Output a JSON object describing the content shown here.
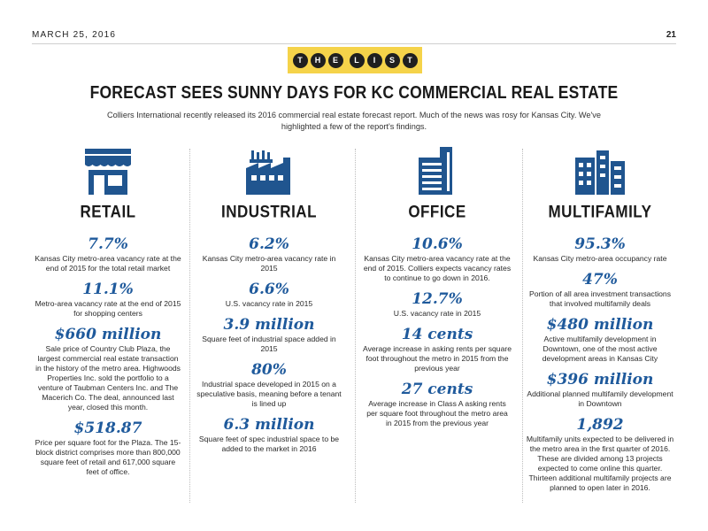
{
  "header": {
    "date": "MARCH 25, 2016",
    "page_number": "21"
  },
  "badge": {
    "word1": [
      "T",
      "H",
      "E"
    ],
    "word2": [
      "L",
      "I",
      "S",
      "T"
    ]
  },
  "headline": "FORECAST SEES SUNNY DAYS FOR KC COMMERCIAL REAL ESTATE",
  "intro": "Colliers International recently released its 2016 commercial real estate forecast report. Much of the news was rosy for Kansas City. We've highlighted a few of the report's findings.",
  "colors": {
    "accent_blue": "#1f5a9c",
    "badge_yellow": "#f5d34a",
    "icon_blue": "#20558f"
  },
  "columns": [
    {
      "icon": "storefront-icon",
      "title": "RETAIL",
      "stats": [
        {
          "value": "7.7%",
          "desc": "Kansas City metro-area vacancy rate at the end of 2015 for the total retail market"
        },
        {
          "value": "11.1%",
          "desc": "Metro-area vacancy rate at the end of 2015 for shopping centers"
        },
        {
          "value": "$660 million",
          "desc": "Sale price of Country Club Plaza, the largest commercial real estate transaction in the history of the metro area. Highwoods Properties Inc. sold the portfolio to a venture of Taubman Centers Inc. and The Macerich Co. The deal, announced last year, closed this month."
        },
        {
          "value": "$518.87",
          "desc": "Price per square foot for the Plaza. The 15-block district comprises more than 800,000 square feet of retail and 617,000 square feet of office."
        }
      ]
    },
    {
      "icon": "factory-icon",
      "title": "INDUSTRIAL",
      "stats": [
        {
          "value": "6.2%",
          "desc": "Kansas City metro-area vacancy rate in 2015"
        },
        {
          "value": "6.6%",
          "desc": "U.S. vacancy rate in 2015"
        },
        {
          "value": "3.9 million",
          "desc": "Square feet of industrial space added in 2015"
        },
        {
          "value": "80%",
          "desc": "Industrial space developed in 2015 on a speculative basis, meaning before a tenant is lined up"
        },
        {
          "value": "6.3 million",
          "desc": "Square feet of spec industrial space to be added to the market in 2016"
        }
      ]
    },
    {
      "icon": "office-building-icon",
      "title": "OFFICE",
      "stats": [
        {
          "value": "10.6%",
          "desc": "Kansas City metro-area vacancy rate at the end of 2015. Colliers expects vacancy rates to continue to go down in 2016."
        },
        {
          "value": "12.7%",
          "desc": "U.S. vacancy rate in 2015"
        },
        {
          "value": "14 cents",
          "desc": "Average increase in asking rents per square foot throughout the metro in 2015 from the previous year"
        },
        {
          "value": "27 cents",
          "desc": "Average increase in Class A asking rents per square foot throughout the metro area in 2015 from the previous year"
        }
      ]
    },
    {
      "icon": "apartment-building-icon",
      "title": "MULTIFAMILY",
      "stats": [
        {
          "value": "95.3%",
          "desc": "Kansas City metro-area occupancy rate"
        },
        {
          "value": "47%",
          "desc": "Portion of all area investment transactions that involved multifamily deals"
        },
        {
          "value": "$480 million",
          "desc": "Active multifamily development in Downtown, one of the most active development areas in Kansas City"
        },
        {
          "value": "$396 million",
          "desc": "Additional planned multifamily development in Downtown"
        },
        {
          "value": "1,892",
          "desc": "Multifamily units expected to be delivered in the metro area in the first quarter of 2016. These are divided among 13 projects expected to come online this quarter. Thirteen additional multifamily projects are planned to open later in 2016."
        }
      ]
    }
  ]
}
